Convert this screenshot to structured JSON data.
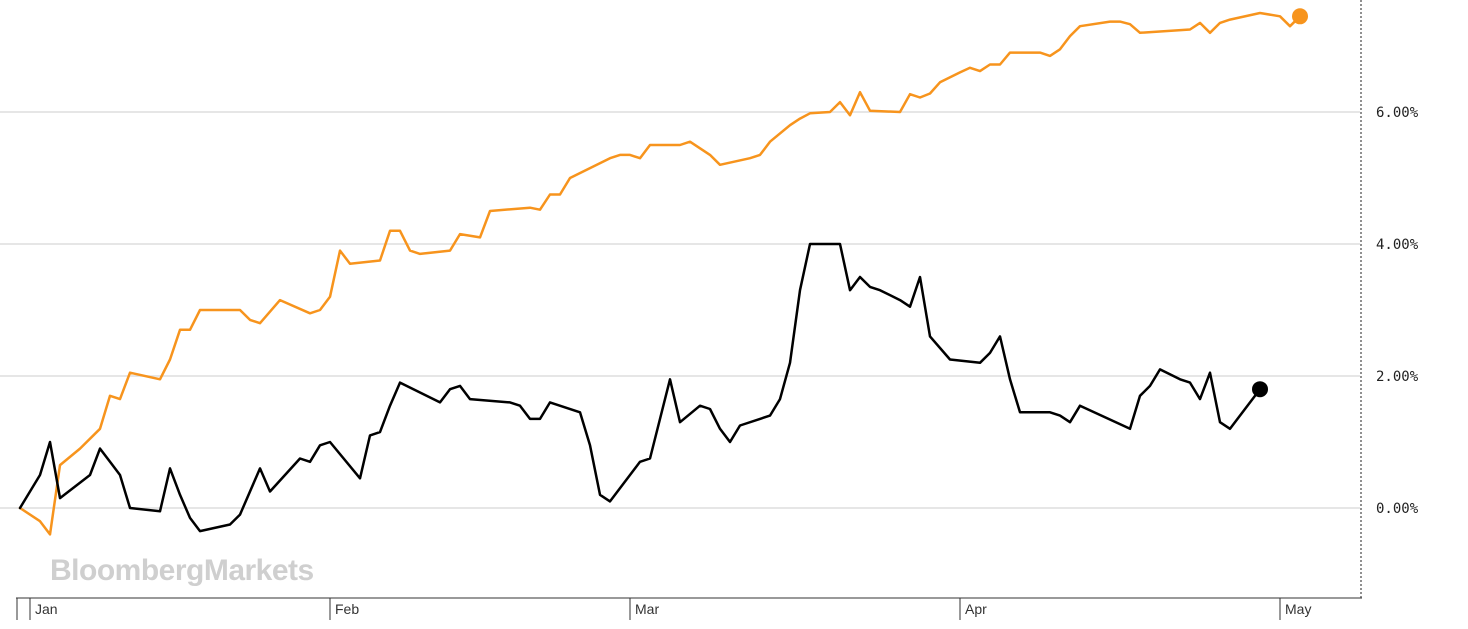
{
  "watermark": "BloombergMarkets",
  "colors": {
    "series_orange": "#f7941d",
    "series_black": "#000000",
    "grid": "#dddddd",
    "axis": "#333333"
  },
  "chart_data": {
    "type": "line",
    "title": "",
    "xlabel": "",
    "ylabel": "",
    "ylim": [
      -1.35,
      7.7
    ],
    "y_ticks": [
      0,
      2,
      4,
      6
    ],
    "y_tick_labels": [
      "0.00%",
      "2.00%",
      "4.00%",
      "6.00%"
    ],
    "x_tick_labels": [
      "Jan",
      "Feb",
      "Mar",
      "Apr",
      "May"
    ],
    "x_tick_days": [
      3,
      33,
      63,
      96,
      128
    ],
    "xlim": [
      2,
      136
    ],
    "grid": true,
    "right_axis_dashed": true,
    "series": [
      {
        "color": "#f7941d",
        "values": [
          [
            2,
            0.0
          ],
          [
            4,
            -0.2
          ],
          [
            5,
            -0.4
          ],
          [
            6,
            0.65
          ],
          [
            8,
            0.9
          ],
          [
            10,
            1.2
          ],
          [
            11,
            1.7
          ],
          [
            12,
            1.65
          ],
          [
            13,
            2.05
          ],
          [
            16,
            1.95
          ],
          [
            17,
            2.25
          ],
          [
            18,
            2.7
          ],
          [
            19,
            2.7
          ],
          [
            20,
            3.0
          ],
          [
            24,
            3.0
          ],
          [
            25,
            2.85
          ],
          [
            26,
            2.8
          ],
          [
            28,
            3.15
          ],
          [
            31,
            2.95
          ],
          [
            32,
            3.0
          ],
          [
            33,
            3.2
          ],
          [
            34,
            3.9
          ],
          [
            35,
            3.7
          ],
          [
            38,
            3.75
          ],
          [
            39,
            4.2
          ],
          [
            40,
            4.2
          ],
          [
            41,
            3.9
          ],
          [
            42,
            3.85
          ],
          [
            45,
            3.9
          ],
          [
            46,
            4.15
          ],
          [
            48,
            4.1
          ],
          [
            49,
            4.5
          ],
          [
            53,
            4.55
          ],
          [
            54,
            4.52
          ],
          [
            55,
            4.75
          ],
          [
            56,
            4.75
          ],
          [
            57,
            5.0
          ],
          [
            59,
            5.15
          ],
          [
            61,
            5.3
          ],
          [
            62,
            5.35
          ],
          [
            63,
            5.35
          ],
          [
            64,
            5.3
          ],
          [
            65,
            5.5
          ],
          [
            68,
            5.5
          ],
          [
            69,
            5.55
          ],
          [
            71,
            5.35
          ],
          [
            72,
            5.2
          ],
          [
            75,
            5.3
          ],
          [
            76,
            5.35
          ],
          [
            77,
            5.55
          ],
          [
            79,
            5.8
          ],
          [
            80,
            5.9
          ],
          [
            81,
            5.98
          ],
          [
            83,
            6.0
          ],
          [
            84,
            6.15
          ],
          [
            85,
            5.95
          ],
          [
            86,
            6.3
          ],
          [
            87,
            6.02
          ],
          [
            90,
            6.0
          ],
          [
            91,
            6.27
          ],
          [
            92,
            6.22
          ],
          [
            93,
            6.28
          ],
          [
            94,
            6.45
          ],
          [
            96,
            6.6
          ],
          [
            97,
            6.67
          ],
          [
            98,
            6.62
          ],
          [
            99,
            6.72
          ],
          [
            100,
            6.72
          ],
          [
            101,
            6.9
          ],
          [
            104,
            6.9
          ],
          [
            105,
            6.85
          ],
          [
            106,
            6.95
          ],
          [
            107,
            7.15
          ],
          [
            108,
            7.3
          ],
          [
            111,
            7.37
          ],
          [
            112,
            7.37
          ],
          [
            113,
            7.33
          ],
          [
            114,
            7.2
          ],
          [
            119,
            7.25
          ],
          [
            120,
            7.35
          ],
          [
            121,
            7.2
          ],
          [
            122,
            7.35
          ],
          [
            123,
            7.4
          ],
          [
            126,
            7.5
          ],
          [
            128,
            7.45
          ],
          [
            129,
            7.3
          ],
          [
            130,
            7.45
          ]
        ]
      },
      {
        "color": "#000000",
        "values": [
          [
            2,
            0.0
          ],
          [
            4,
            0.5
          ],
          [
            5,
            1.0
          ],
          [
            6,
            0.15
          ],
          [
            9,
            0.5
          ],
          [
            10,
            0.9
          ],
          [
            11,
            0.7
          ],
          [
            12,
            0.5
          ],
          [
            13,
            0.0
          ],
          [
            16,
            -0.05
          ],
          [
            17,
            0.6
          ],
          [
            18,
            0.2
          ],
          [
            19,
            -0.15
          ],
          [
            20,
            -0.35
          ],
          [
            23,
            -0.25
          ],
          [
            24,
            -0.1
          ],
          [
            26,
            0.6
          ],
          [
            27,
            0.25
          ],
          [
            30,
            0.75
          ],
          [
            31,
            0.7
          ],
          [
            32,
            0.95
          ],
          [
            33,
            1.0
          ],
          [
            36,
            0.45
          ],
          [
            37,
            1.1
          ],
          [
            38,
            1.15
          ],
          [
            39,
            1.55
          ],
          [
            40,
            1.9
          ],
          [
            44,
            1.6
          ],
          [
            45,
            1.8
          ],
          [
            46,
            1.85
          ],
          [
            47,
            1.65
          ],
          [
            51,
            1.6
          ],
          [
            52,
            1.55
          ],
          [
            53,
            1.35
          ],
          [
            54,
            1.35
          ],
          [
            55,
            1.6
          ],
          [
            58,
            1.45
          ],
          [
            59,
            0.95
          ],
          [
            60,
            0.2
          ],
          [
            61,
            0.1
          ],
          [
            64,
            0.7
          ],
          [
            65,
            0.75
          ],
          [
            67,
            1.95
          ],
          [
            68,
            1.3
          ],
          [
            70,
            1.55
          ],
          [
            71,
            1.5
          ],
          [
            72,
            1.2
          ],
          [
            73,
            1.0
          ],
          [
            74,
            1.25
          ],
          [
            76,
            1.35
          ],
          [
            77,
            1.4
          ],
          [
            78,
            1.65
          ],
          [
            79,
            2.2
          ],
          [
            80,
            3.3
          ],
          [
            81,
            4.0
          ],
          [
            84,
            4.0
          ],
          [
            85,
            3.3
          ],
          [
            86,
            3.5
          ],
          [
            87,
            3.35
          ],
          [
            88,
            3.3
          ],
          [
            90,
            3.15
          ],
          [
            91,
            3.05
          ],
          [
            92,
            3.5
          ],
          [
            93,
            2.6
          ],
          [
            95,
            2.25
          ],
          [
            98,
            2.2
          ],
          [
            99,
            2.35
          ],
          [
            100,
            2.6
          ],
          [
            101,
            1.95
          ],
          [
            102,
            1.45
          ],
          [
            105,
            1.45
          ],
          [
            106,
            1.4
          ],
          [
            107,
            1.3
          ],
          [
            108,
            1.55
          ],
          [
            113,
            1.2
          ],
          [
            114,
            1.7
          ],
          [
            115,
            1.85
          ],
          [
            116,
            2.1
          ],
          [
            118,
            1.95
          ],
          [
            119,
            1.9
          ],
          [
            120,
            1.65
          ],
          [
            121,
            2.05
          ],
          [
            122,
            1.3
          ],
          [
            123,
            1.2
          ],
          [
            126,
            1.8
          ]
        ]
      }
    ]
  }
}
